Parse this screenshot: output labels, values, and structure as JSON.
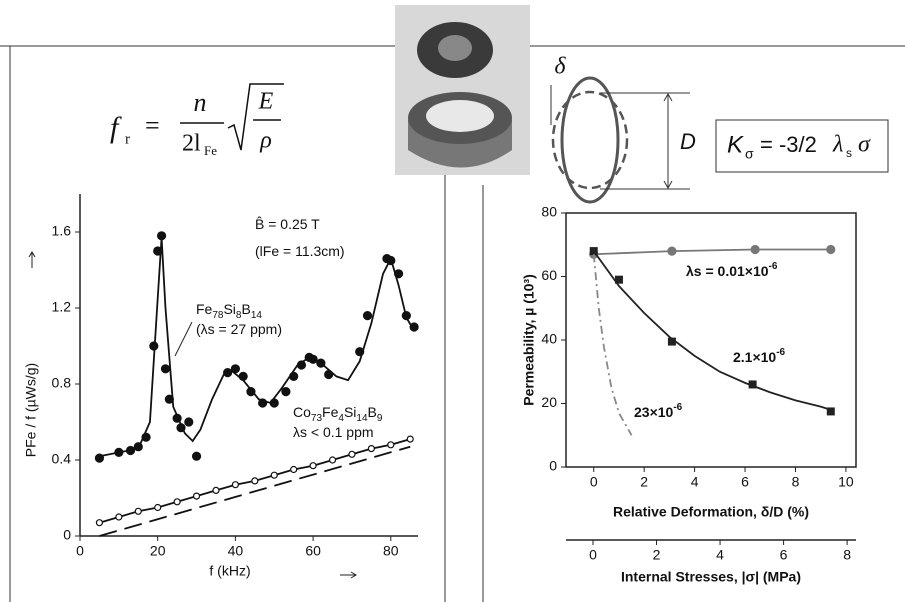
{
  "formula": {
    "lhs": "f",
    "lhs_sub": "r",
    "eq": "=",
    "num": "n",
    "den": "2l",
    "den_sub": "Fe",
    "rad_num": "E",
    "rad_den": "ρ"
  },
  "diagram": {
    "delta": "δ",
    "d": "D",
    "k": "K",
    "k_sub": "σ",
    "rest": "= -3/2",
    "lambda": "λ",
    "lambda_sub": "s",
    "sigma": "σ"
  },
  "chart_data": [
    {
      "type": "line",
      "xlabel": "f  (kHz)",
      "ylabel": "PFe / f  (µWs/g)",
      "xlim": [
        0,
        87
      ],
      "ylim": [
        0,
        1.8
      ],
      "xticks": [
        0,
        20,
        40,
        60,
        80
      ],
      "yticks": [
        0,
        0.4,
        0.8,
        1.2,
        1.6
      ],
      "frame": false,
      "annotations": [
        "B̂ = 0.25 T",
        "(lFe = 11.3cm)",
        "Fe78Si8B14",
        "(λs = 27 ppm)",
        "Co73Fe4Si14B9",
        "λs < 0.1 ppm"
      ],
      "series": [
        {
          "color": "#111111",
          "marker": "filled-circle",
          "linestyle": "none",
          "x": [
            5,
            10,
            13,
            15,
            17,
            19,
            20,
            21,
            22,
            23,
            25,
            26,
            28,
            30,
            38,
            40,
            42,
            44,
            47,
            50,
            53,
            55,
            57,
            59,
            60,
            62,
            64,
            72,
            74,
            79,
            80,
            82,
            84,
            86
          ],
          "values": [
            0.41,
            0.44,
            0.45,
            0.47,
            0.52,
            1.0,
            1.5,
            1.58,
            0.88,
            0.72,
            0.62,
            0.57,
            0.6,
            0.42,
            0.86,
            0.88,
            0.84,
            0.76,
            0.7,
            0.7,
            0.76,
            0.84,
            0.9,
            0.94,
            0.93,
            0.91,
            0.85,
            0.97,
            1.16,
            1.46,
            1.45,
            1.38,
            1.16,
            1.1
          ]
        },
        {
          "color": "#111111",
          "marker": "none",
          "linestyle": "solid",
          "x": [
            5,
            15,
            18,
            20,
            21,
            22,
            24,
            27,
            29,
            31,
            34,
            37,
            39,
            42,
            46,
            49,
            52,
            56,
            59,
            62,
            66,
            69,
            72,
            75,
            78,
            80,
            82,
            84,
            86
          ],
          "values": [
            0.42,
            0.46,
            0.6,
            1.25,
            1.57,
            1.2,
            0.68,
            0.54,
            0.5,
            0.56,
            0.72,
            0.85,
            0.87,
            0.82,
            0.72,
            0.7,
            0.78,
            0.9,
            0.94,
            0.91,
            0.84,
            0.82,
            0.92,
            1.12,
            1.38,
            1.46,
            1.32,
            1.15,
            1.08
          ]
        },
        {
          "color": "#111111",
          "marker": "open-circle",
          "linestyle": "solid",
          "x": [
            5,
            10,
            15,
            20,
            25,
            30,
            35,
            40,
            45,
            50,
            55,
            60,
            65,
            70,
            75,
            80,
            85
          ],
          "values": [
            0.07,
            0.1,
            0.13,
            0.15,
            0.18,
            0.21,
            0.24,
            0.27,
            0.29,
            0.32,
            0.35,
            0.37,
            0.4,
            0.43,
            0.46,
            0.48,
            0.51
          ]
        },
        {
          "color": "#111111",
          "marker": "none",
          "linestyle": "dashed",
          "x": [
            5,
            85
          ],
          "values": [
            0,
            0.47
          ]
        }
      ]
    },
    {
      "type": "line",
      "xlabel": "Relative Deformation, δ/D (%)",
      "ylabel": "Permeability, µ  (10³)",
      "xlim": [
        -1.1,
        10.4
      ],
      "ylim": [
        0,
        80
      ],
      "xticks": [
        0,
        2,
        4,
        6,
        8,
        10
      ],
      "yticks": [
        0,
        20,
        40,
        60,
        80
      ],
      "frame": true,
      "x2label": "Internal Stresses, |σ|  (MPa)",
      "x2lim": [
        -0.85,
        8.28
      ],
      "x2ticks": [
        0,
        2,
        4,
        6,
        8
      ],
      "annotations": [
        "λs = 0.01×10-6",
        "2.1×10-6",
        "23×10-6"
      ],
      "series": [
        {
          "color": "#777777",
          "marker": "filled-circle",
          "linestyle": "solid",
          "x": [
            0,
            3.1,
            6.4,
            9.4
          ],
          "values": [
            67,
            68,
            68.5,
            68.5
          ]
        },
        {
          "color": "#222222",
          "marker": "square",
          "linestyle": "none",
          "x": [
            0,
            1,
            3.1,
            6.3,
            9.4
          ],
          "values": [
            68,
            59,
            39.5,
            26,
            17.5
          ]
        },
        {
          "color": "#222222",
          "marker": "none",
          "linestyle": "solid",
          "x": [
            0,
            1,
            2,
            3,
            4,
            5,
            6,
            7,
            8,
            9,
            9.4
          ],
          "values": [
            68,
            57,
            48.5,
            41,
            35,
            30,
            26.5,
            23.5,
            21,
            19,
            18
          ]
        },
        {
          "color": "#888888",
          "marker": "none",
          "linestyle": "dashdot",
          "x": [
            0,
            0.2,
            0.4,
            0.7,
            1.0,
            1.5
          ],
          "values": [
            67,
            50,
            38,
            25,
            17,
            10
          ]
        }
      ]
    }
  ]
}
